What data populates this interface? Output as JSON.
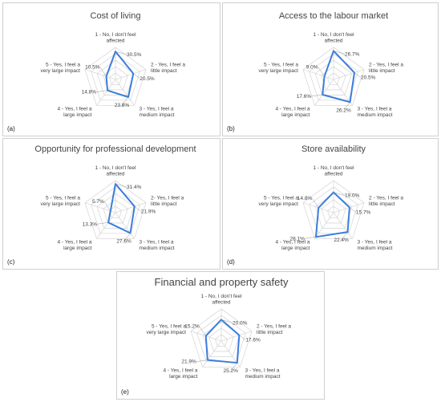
{
  "figure": {
    "categories": [
      "1 - No, I don't feel affected",
      "2 - Yes, I feel a little impact",
      "3 - Yes, I feel a medium impact",
      "4 - Yes, I feel a large impact",
      "5 - Yes, I feel a very large impact"
    ],
    "series_color": "#3b7ddd",
    "grid_color": "#d9d9d9"
  },
  "chart_data": [
    {
      "type": "radar",
      "panel_label": "(a)",
      "title": "Cost of living",
      "categories": [
        "1 - No, I don't feel affected",
        "2 - Yes, I feel a little impact",
        "3 - Yes, I feel a medium impact",
        "4 - Yes, I feel a large impact",
        "5 - Yes, I feel a very large impact"
      ],
      "values": [
        30.5,
        20.5,
        23.8,
        14.8,
        10.5
      ],
      "value_labels": [
        "30.5%",
        "20.5%",
        "23.8%",
        "14.8%",
        "10.5%"
      ],
      "rmax": 35,
      "grid_rings": 5
    },
    {
      "type": "radar",
      "panel_label": "(b)",
      "title": "Access to the labour market",
      "categories": [
        "1 - No, I don't feel affected",
        "2 - Yes, I feel a little impact",
        "3 - Yes, I feel a medium impact",
        "4 - Yes, I feel a large impact",
        "5 - Yes, I feel a very large impact"
      ],
      "values": [
        26.7,
        20.5,
        26.2,
        17.6,
        9.0
      ],
      "value_labels": [
        "26.7%",
        "20.5%",
        "26.2%",
        "17.6%",
        "9.0%"
      ],
      "rmax": 30,
      "grid_rings": 5
    },
    {
      "type": "radar",
      "panel_label": "(c)",
      "title": "Opportunity  for professional development",
      "categories": [
        "1 - No, I don't feel affected",
        "2-  Yes, I feel a little impact",
        "3 - Yes, I feel a medium impact",
        "4 - Yes, I feel a large impact",
        "5 - Yes, I feel a very large impact"
      ],
      "values": [
        31.4,
        21.9,
        27.6,
        13.3,
        5.7
      ],
      "value_labels": [
        "31.4%",
        "21.9%",
        "27.6%",
        "13.3%",
        "5.7%"
      ],
      "rmax": 35,
      "grid_rings": 5
    },
    {
      "type": "radar",
      "panel_label": "(d)",
      "title": "Store availability",
      "categories": [
        "1 - No, I don't feel affected",
        "2 - Yes, I feel a little impact",
        "3 - Yes, I feel a medium impact",
        "4 - Yes, I feel a large impact",
        "5 - Yes, I feel a very large impact"
      ],
      "values": [
        19.0,
        15.7,
        22.4,
        28.1,
        14.8
      ],
      "value_labels": [
        "19.0%",
        "15.7%",
        "22.4%",
        "28.1%",
        "14.8%"
      ],
      "rmax": 30,
      "grid_rings": 5
    },
    {
      "type": "radar",
      "panel_label": "(e)",
      "title": "Financial and property safety",
      "categories": [
        "1 - No, I don't feel affected",
        "2 - Yes, I feel a little impact",
        "3 - Yes, I feel a medium impact",
        "4 - Yes, I feel a large impact",
        "5 - Yes, I feel a very large impact"
      ],
      "values": [
        20.0,
        17.6,
        25.2,
        21.9,
        15.2
      ],
      "value_labels": [
        "20.0%",
        "17.6%",
        "25.2%",
        "21.9%",
        "15.2%"
      ],
      "rmax": 30,
      "grid_rings": 5
    }
  ]
}
